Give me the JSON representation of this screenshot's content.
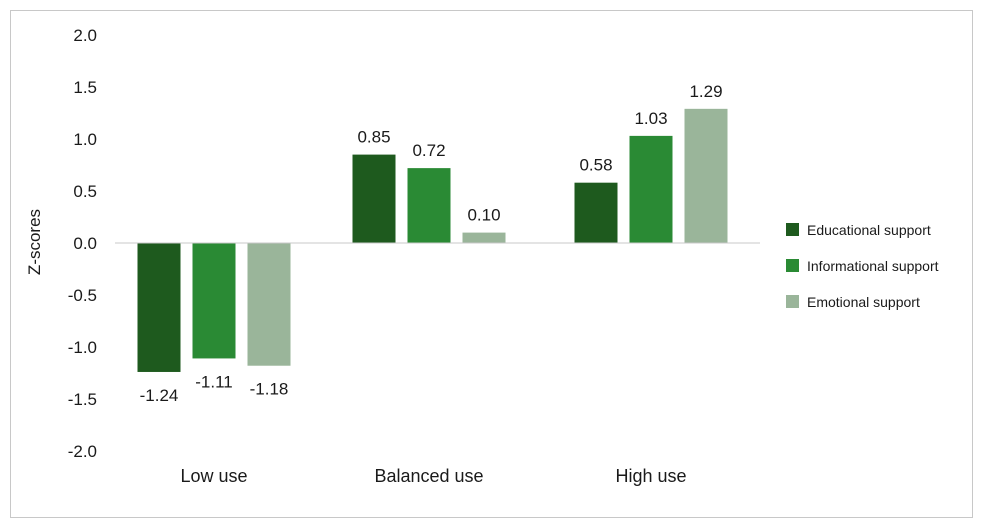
{
  "chart_data": {
    "type": "bar",
    "categories": [
      "Low use",
      "Balanced use",
      "High use"
    ],
    "series": [
      {
        "name": "Educational support",
        "values": [
          -1.24,
          0.85,
          0.58
        ],
        "color": "#1e5a1e"
      },
      {
        "name": "Informational support",
        "values": [
          -1.11,
          0.72,
          1.03
        ],
        "color": "#2a8a34"
      },
      {
        "name": "Emotional support",
        "values": [
          -1.18,
          0.1,
          1.29
        ],
        "color": "#9ab59a"
      }
    ],
    "data_labels": [
      [
        "-1.24",
        "0.85",
        "0.58"
      ],
      [
        "-1.11",
        "0.72",
        "1.03"
      ],
      [
        "-1.18",
        "0.10",
        "1.29"
      ]
    ],
    "y_ticks": [
      2.0,
      1.5,
      1.0,
      0.5,
      0.0,
      -0.5,
      -1.0,
      -1.5,
      -2.0
    ],
    "y_tick_labels": [
      "2.0",
      "1.5",
      "1.0",
      "0.5",
      "0.0",
      "-0.5",
      "-1.0",
      "-1.5",
      "-2.0"
    ],
    "ylim": [
      -2.0,
      2.0
    ],
    "ylabel": "Z-scores",
    "xlabel": "",
    "title": "",
    "grid": false,
    "legend_position": "right"
  }
}
